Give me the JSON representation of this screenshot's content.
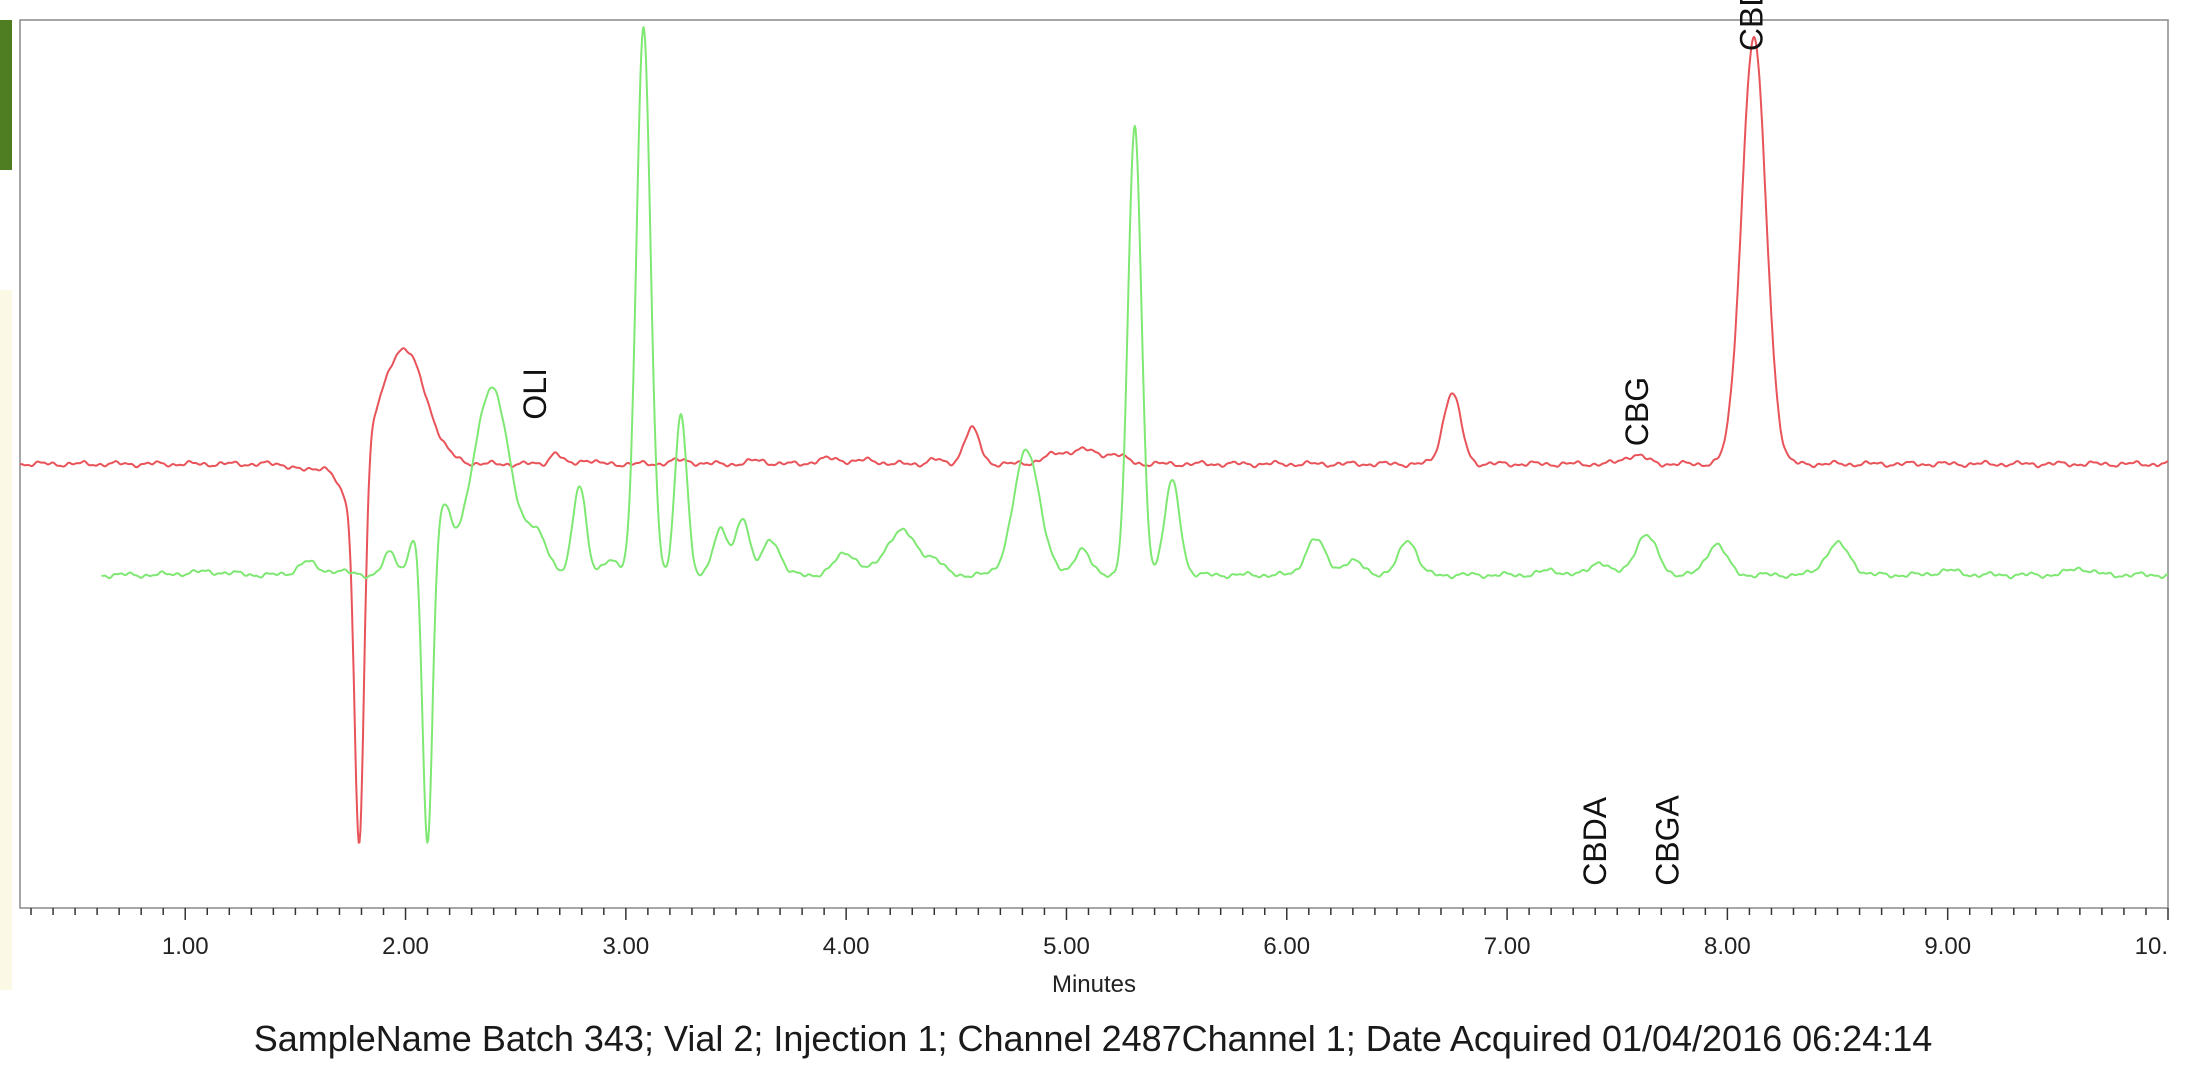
{
  "chart_data": {
    "type": "line",
    "title": "",
    "xlabel": "Minutes",
    "ylabel": "",
    "xlim": [
      0.25,
      10.0
    ],
    "ylim": [
      -100,
      100
    ],
    "x_ticks": [
      {
        "value": 1.0,
        "label": "1.00"
      },
      {
        "value": 2.0,
        "label": "2.00"
      },
      {
        "value": 3.0,
        "label": "3.00"
      },
      {
        "value": 4.0,
        "label": "4.00"
      },
      {
        "value": 5.0,
        "label": "5.00"
      },
      {
        "value": 6.0,
        "label": "6.00"
      },
      {
        "value": 7.0,
        "label": "7.00"
      },
      {
        "value": 8.0,
        "label": "8.00"
      },
      {
        "value": 9.0,
        "label": "9.00"
      },
      {
        "value": 10.0,
        "label": "10."
      }
    ],
    "grid": false,
    "series": [
      {
        "color": "#e8545a",
        "baseline": 0,
        "x_range": [
          0.25,
          10.0
        ],
        "peaks": [
          {
            "x": 1.55,
            "h": -1.5,
            "w": 0.05
          },
          {
            "x": 1.73,
            "h": -8,
            "w": 0.04
          },
          {
            "x": 1.79,
            "h": -86,
            "w": 0.022
          },
          {
            "x": 1.99,
            "h": 26,
            "w": 0.1
          },
          {
            "x": 2.68,
            "h": 2.5,
            "w": 0.025
          },
          {
            "x": 2.82,
            "h": 1,
            "w": 0.03
          },
          {
            "x": 3.25,
            "h": 0.8,
            "w": 0.05
          },
          {
            "x": 3.6,
            "h": 0.8,
            "w": 0.04
          },
          {
            "x": 3.93,
            "h": 1.2,
            "w": 0.06
          },
          {
            "x": 4.1,
            "h": 0.8,
            "w": 0.05
          },
          {
            "x": 4.4,
            "h": 1,
            "w": 0.03
          },
          {
            "x": 4.57,
            "h": 8,
            "w": 0.035
          },
          {
            "x": 4.95,
            "h": 2,
            "w": 0.06
          },
          {
            "x": 5.08,
            "h": 3,
            "w": 0.06
          },
          {
            "x": 5.22,
            "h": 2,
            "w": 0.05
          },
          {
            "x": 6.75,
            "h": 16,
            "w": 0.04
          },
          {
            "x": 7.58,
            "h": 2,
            "w": 0.05
          },
          {
            "x": 8.12,
            "h": 96,
            "w": 0.055
          }
        ]
      },
      {
        "color": "#7fe873",
        "baseline": -25,
        "x_range": [
          0.62,
          10.0
        ],
        "peaks": [
          {
            "x": 1.1,
            "h": 0.7,
            "w": 0.1
          },
          {
            "x": 1.55,
            "h": 3,
            "w": 0.04
          },
          {
            "x": 1.68,
            "h": 1,
            "w": 0.05
          },
          {
            "x": 1.93,
            "h": 5,
            "w": 0.03
          },
          {
            "x": 2.04,
            "h": 9,
            "w": 0.025
          },
          {
            "x": 2.1,
            "h": -63,
            "w": 0.022
          },
          {
            "x": 2.17,
            "h": 15,
            "w": 0.035
          },
          {
            "x": 2.39,
            "h": 42,
            "w": 0.085
          },
          {
            "x": 2.6,
            "h": 8,
            "w": 0.05
          },
          {
            "x": 2.79,
            "h": 20,
            "w": 0.03
          },
          {
            "x": 2.93,
            "h": 3,
            "w": 0.04
          },
          {
            "x": 3.08,
            "h": 123,
            "w": 0.032
          },
          {
            "x": 3.25,
            "h": 36,
            "w": 0.027
          },
          {
            "x": 3.43,
            "h": 10,
            "w": 0.035
          },
          {
            "x": 3.53,
            "h": 13,
            "w": 0.03
          },
          {
            "x": 3.66,
            "h": 8,
            "w": 0.04
          },
          {
            "x": 4.0,
            "h": 5,
            "w": 0.05
          },
          {
            "x": 4.25,
            "h": 10,
            "w": 0.07
          },
          {
            "x": 4.4,
            "h": 3,
            "w": 0.04
          },
          {
            "x": 4.82,
            "h": 28,
            "w": 0.06
          },
          {
            "x": 5.07,
            "h": 6,
            "w": 0.035
          },
          {
            "x": 5.31,
            "h": 101,
            "w": 0.03
          },
          {
            "x": 5.48,
            "h": 21,
            "w": 0.035
          },
          {
            "x": 6.13,
            "h": 8,
            "w": 0.045
          },
          {
            "x": 6.3,
            "h": 3,
            "w": 0.05
          },
          {
            "x": 6.55,
            "h": 8,
            "w": 0.04
          },
          {
            "x": 7.2,
            "h": 1,
            "w": 0.05
          },
          {
            "x": 7.42,
            "h": 3,
            "w": 0.04
          },
          {
            "x": 7.63,
            "h": 9,
            "w": 0.05
          },
          {
            "x": 7.95,
            "h": 7,
            "w": 0.045
          },
          {
            "x": 8.5,
            "h": 7,
            "w": 0.055
          },
          {
            "x": 9.0,
            "h": 1,
            "w": 0.05
          },
          {
            "x": 9.6,
            "h": 1.5,
            "w": 0.05
          }
        ]
      }
    ],
    "annotations": [
      {
        "text": "OLI",
        "x": 2.6,
        "y": 10,
        "rotation": -90
      },
      {
        "text": "CBG",
        "x": 7.6,
        "y": 4,
        "rotation": -90
      },
      {
        "text": "CBD",
        "x": 8.12,
        "y": 93,
        "rotation": -90
      },
      {
        "text": "CBDA",
        "x": 7.41,
        "y": -95,
        "rotation": -90
      },
      {
        "text": "CBGA",
        "x": 7.74,
        "y": -95,
        "rotation": -90
      }
    ]
  },
  "footer": "SampleName Batch 343; Vial 2; Injection 1; Channel 2487Channel 1; Date Acquired 01/04/2016 06:24:14",
  "colors": {
    "left_tab_dark": "#4f7d22",
    "left_tab_light": "#fbf9e6",
    "frame": "#8a8a8a"
  }
}
